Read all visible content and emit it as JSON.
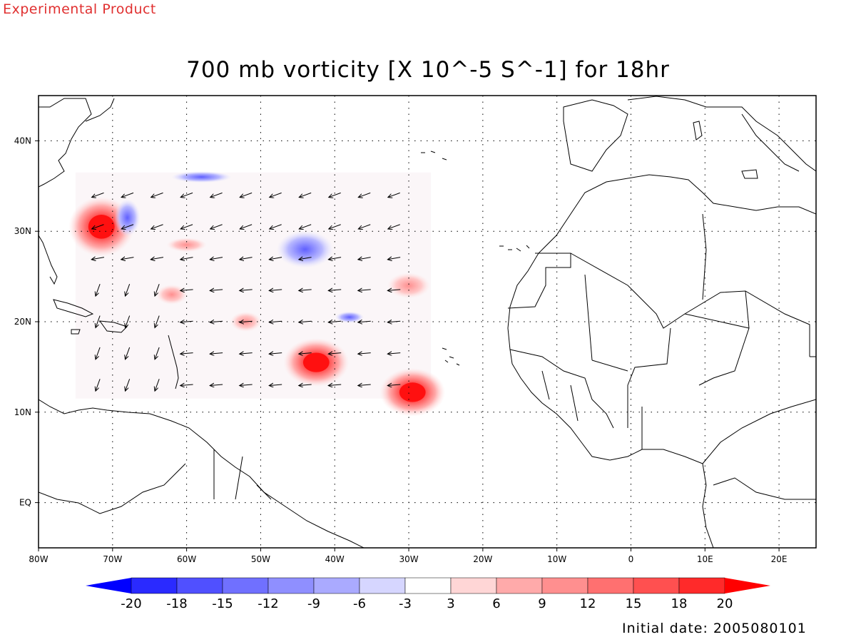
{
  "header": {
    "product_label": "Experimental Product",
    "title": "700 mb vorticity [X 10^-5 S^-1] for 18hr"
  },
  "map": {
    "lon_range": [
      -80,
      25
    ],
    "lat_range": [
      -5,
      45
    ],
    "lat_labels": [
      {
        "lat": 40,
        "label": "40N"
      },
      {
        "lat": 30,
        "label": "30N"
      },
      {
        "lat": 20,
        "label": "20N"
      },
      {
        "lat": 10,
        "label": "10N"
      },
      {
        "lat": 0,
        "label": "EQ"
      }
    ],
    "lon_labels": [
      {
        "lon": -80,
        "label": "80W"
      },
      {
        "lon": -70,
        "label": "70W"
      },
      {
        "lon": -60,
        "label": "60W"
      },
      {
        "lon": -50,
        "label": "50W"
      },
      {
        "lon": -40,
        "label": "40W"
      },
      {
        "lon": -30,
        "label": "30W"
      },
      {
        "lon": -20,
        "label": "20W"
      },
      {
        "lon": -10,
        "label": "10W"
      },
      {
        "lon": 0,
        "label": "0"
      },
      {
        "lon": 10,
        "label": "10E"
      },
      {
        "lon": 20,
        "label": "20E"
      }
    ],
    "grid_lats": [
      40,
      30,
      20,
      10,
      0
    ],
    "grid_lons": [
      -70,
      -60,
      -50,
      -40,
      -30,
      -20,
      -10,
      0,
      10,
      20
    ],
    "gridlines": "dotted",
    "vorticity_features": [
      {
        "lon": -71.5,
        "lat": 30.5,
        "value": 20
      },
      {
        "lon": -42.5,
        "lat": 15.5,
        "value": 18
      },
      {
        "lon": -29.5,
        "lat": 12.2,
        "value": 18
      },
      {
        "lon": -62,
        "lat": 23,
        "value": 12
      },
      {
        "lon": -52,
        "lat": 20,
        "value": 12
      },
      {
        "lon": -60,
        "lat": 28.5,
        "value": 9
      },
      {
        "lon": -68,
        "lat": 31.5,
        "value": -12
      },
      {
        "lon": -58,
        "lat": 36,
        "value": -15
      },
      {
        "lon": -44,
        "lat": 28,
        "value": -6
      },
      {
        "lon": -38,
        "lat": 20.5,
        "value": -9
      },
      {
        "lon": -30,
        "lat": 24,
        "value": 6
      }
    ]
  },
  "colorbar": {
    "levels": [
      "-20",
      "-18",
      "-15",
      "-12",
      "-9",
      "-6",
      "-3",
      "3",
      "6",
      "9",
      "12",
      "15",
      "18",
      "20"
    ],
    "colors": [
      "#0000ff",
      "#2a2aff",
      "#5050ff",
      "#7070ff",
      "#8f8fff",
      "#aaaaff",
      "#d6d6ff",
      "#ffffff",
      "#ffd6d6",
      "#ffaaaa",
      "#ff8f8f",
      "#ff7070",
      "#ff5050",
      "#ff2a2a",
      "#ff0000"
    ]
  },
  "footer": {
    "initial_date": "Initial date: 2005080101"
  }
}
